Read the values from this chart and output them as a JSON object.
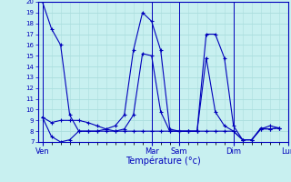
{
  "xlabel": "Température (°c)",
  "background_color": "#c8f0f0",
  "line_color": "#0000bb",
  "grid_color": "#aadddd",
  "ylim": [
    7,
    20
  ],
  "yticks": [
    7,
    8,
    9,
    10,
    11,
    12,
    13,
    14,
    15,
    16,
    17,
    18,
    19,
    20
  ],
  "xtick_labels": [
    "Ven",
    "Mar",
    "Sam",
    "Dim",
    "Lun"
  ],
  "xtick_positions": [
    0,
    12,
    15,
    21,
    27
  ],
  "series1": [
    20,
    17.5,
    16.0,
    9.5,
    8.0,
    8.0,
    8.0,
    8.2,
    8.5,
    9.5,
    15.5,
    19.0,
    18.2,
    15.5,
    8.2,
    8.0,
    8.0,
    8.0,
    17.0,
    17.0,
    14.8,
    8.5,
    7.2,
    7.2,
    8.3,
    8.2,
    8.3
  ],
  "series2": [
    9.3,
    7.5,
    7.0,
    7.2,
    8.0,
    8.0,
    8.0,
    8.0,
    8.0,
    8.0,
    8.0,
    8.0,
    8.0,
    8.0,
    8.0,
    8.0,
    8.0,
    8.0,
    8.0,
    8.0,
    8.0,
    8.0,
    7.2,
    7.2,
    8.2,
    8.5,
    8.3
  ],
  "series3": [
    9.3,
    8.8,
    9.0,
    9.0,
    9.0,
    8.8,
    8.5,
    8.2,
    8.0,
    8.2,
    9.5,
    15.2,
    15.0,
    9.8,
    8.0,
    8.0,
    8.0,
    8.0,
    14.8,
    9.8,
    8.5,
    8.0,
    7.2,
    7.2,
    8.2,
    8.2,
    8.3
  ],
  "num_points": 27,
  "xlabel_fontsize": 7,
  "ytick_fontsize": 5,
  "xtick_fontsize": 6
}
